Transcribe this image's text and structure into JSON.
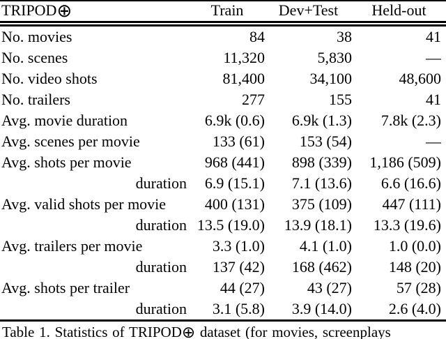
{
  "page": {
    "background_color": "#ffffff",
    "text_color": "#000000"
  },
  "table": {
    "title": "TRIPOD",
    "title_symbol": "⊕",
    "columns": [
      "Train",
      "Dev+Test",
      "Held-out"
    ],
    "rows": [
      {
        "label": "No. movies",
        "label_align": "left",
        "train": "84",
        "dev_test": "38",
        "held_out": "41"
      },
      {
        "label": "No. scenes",
        "label_align": "left",
        "train": "11,320",
        "dev_test": "5,830",
        "held_out": "—"
      },
      {
        "label": "No. video shots",
        "label_align": "left",
        "train": "81,400",
        "dev_test": "34,100",
        "held_out": "48,600"
      },
      {
        "label": "No. trailers",
        "label_align": "left",
        "train": "277",
        "dev_test": "155",
        "held_out": "41"
      },
      {
        "label": "Avg. movie duration",
        "label_align": "left",
        "train": "6.9k (0.6)",
        "dev_test": "6.9k (1.3)",
        "held_out": "7.8k (2.3)"
      },
      {
        "label": "Avg. scenes per movie",
        "label_align": "left",
        "train": "133 (61)",
        "dev_test": "153 (54)",
        "held_out": "—"
      },
      {
        "label": "Avg. shots per movie",
        "label_align": "left",
        "train": "968 (441)",
        "dev_test": "898 (339)",
        "held_out": "1,186 (509)"
      },
      {
        "label": "duration",
        "label_align": "right",
        "train": "6.9 (15.1)",
        "dev_test": "7.1 (13.6)",
        "held_out": "6.6 (16.6)"
      },
      {
        "label": "Avg. valid shots per movie",
        "label_align": "left",
        "train": "400 (131)",
        "dev_test": "375 (109)",
        "held_out": "447 (111)"
      },
      {
        "label": "duration",
        "label_align": "right",
        "train": "13.5 (19.0)",
        "dev_test": "13.9 (18.1)",
        "held_out": "13.3 (19.6)"
      },
      {
        "label": "Avg. trailers per movie",
        "label_align": "left",
        "train": "3.3 (1.0)",
        "dev_test": "4.1 (1.0)",
        "held_out": "1.0 (0.0)"
      },
      {
        "label": "duration",
        "label_align": "right",
        "train": "137 (42)",
        "dev_test": "168 (462)",
        "held_out": "148 (20)"
      },
      {
        "label": "Avg. shots per trailer",
        "label_align": "left",
        "train": "44 (27)",
        "dev_test": "43 (27)",
        "held_out": "57 (28)"
      },
      {
        "label": "duration",
        "label_align": "right",
        "train": "3.1 (5.8)",
        "dev_test": "3.9 (14.0)",
        "held_out": "2.6 (4.0)"
      }
    ]
  },
  "caption": {
    "prefix": "Table 1. Statistics of TRIPOD",
    "symbol": "⊕",
    "suffix": " dataset (for movies, screenplays"
  }
}
